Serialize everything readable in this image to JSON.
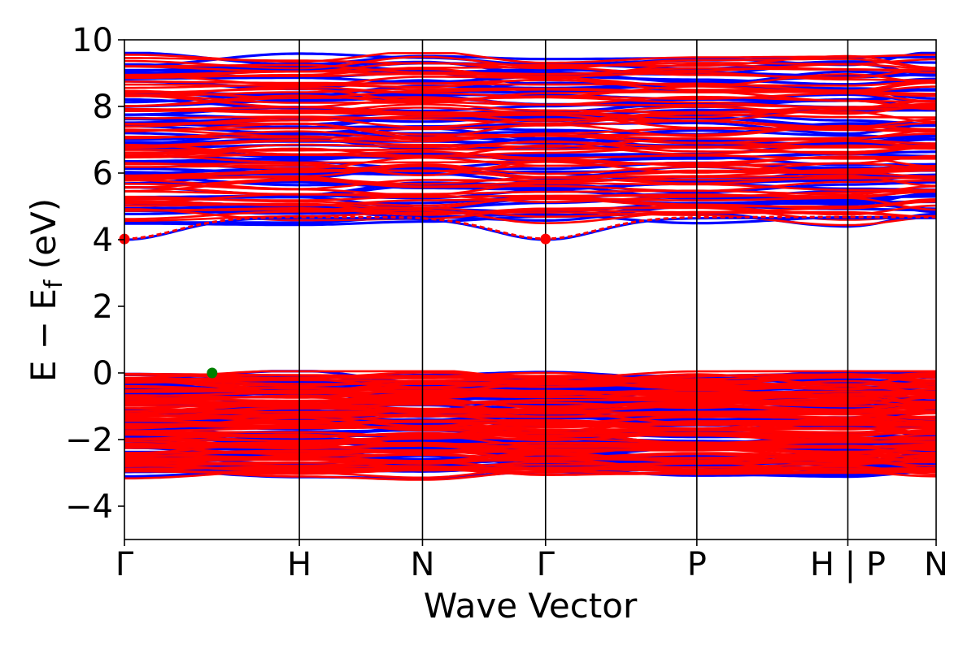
{
  "chart_data": {
    "type": "line",
    "xlabel": "Wave Vector",
    "ylabel_main": "E − E",
    "ylabel_sub": "f",
    "ylabel_tail": " (eV)",
    "ylim": [
      -5,
      10
    ],
    "yticks": [
      -4,
      -2,
      0,
      2,
      4,
      6,
      8,
      10
    ],
    "ytick_labels": [
      "−4",
      "−2",
      "0",
      "2",
      "4",
      "6",
      "8",
      "10"
    ],
    "xlim": [
      0,
      1
    ],
    "high_symmetry_points": [
      {
        "label": "Γ",
        "x": 0.0
      },
      {
        "label": "H",
        "x": 0.2155
      },
      {
        "label": "N",
        "x": 0.3672
      },
      {
        "label": "Γ",
        "x": 0.5188
      },
      {
        "label": "P",
        "x": 0.7052
      },
      {
        "label": "H | P",
        "x": 0.8912
      },
      {
        "label": "N",
        "x": 1.0
      }
    ],
    "grid": false,
    "series_colors": [
      "#ff0000",
      "#0000ff"
    ],
    "conduction_band_min": 4.0,
    "valence_band_max": 0.0,
    "valence_band_bottom": -3.15,
    "conduction_band_top": 9.55,
    "markers": [
      {
        "x": 0.0,
        "y": 4.02,
        "color": "#ff0000",
        "role": "CBM"
      },
      {
        "x": 0.5188,
        "y": 4.02,
        "color": "#ff0000",
        "role": "CBM"
      },
      {
        "x": 0.108,
        "y": 0.0,
        "color": "#008000",
        "role": "VBM"
      }
    ]
  }
}
